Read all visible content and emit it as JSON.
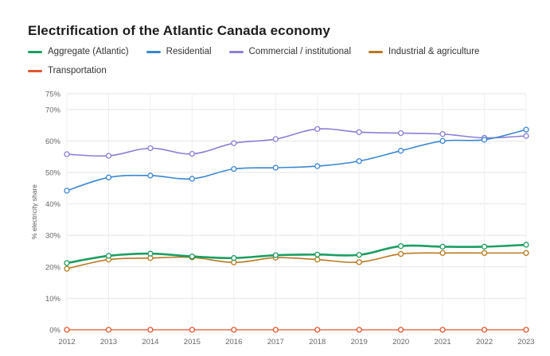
{
  "chart_data": {
    "type": "line",
    "title": "Electrification of the Atlantic Canada economy",
    "ylabel": "% electricity share",
    "xlabel": "",
    "x": [
      "2012",
      "2013",
      "2014",
      "2015",
      "2016",
      "2017",
      "2018",
      "2019",
      "2020",
      "2021",
      "2022",
      "2023"
    ],
    "ylim": [
      0,
      75
    ],
    "yticks": [
      "0%",
      "10%",
      "20%",
      "30%",
      "40%",
      "50%",
      "60%",
      "70%",
      "75%"
    ],
    "grid": true,
    "legend_position": "top-left",
    "series": [
      {
        "name": "Aggregate (Atlantic)",
        "color": "#1a9e62",
        "width": 2.6,
        "values": [
          21.2,
          23.5,
          24.2,
          23.3,
          22.8,
          23.7,
          23.9,
          23.8,
          26.6,
          26.4,
          26.4,
          27.0
        ]
      },
      {
        "name": "Residential",
        "color": "#3a86d1",
        "width": 1.6,
        "values": [
          44.2,
          48.4,
          49.0,
          48.0,
          51.1,
          51.5,
          52.0,
          53.6,
          56.9,
          60.0,
          60.4,
          63.6
        ]
      },
      {
        "name": "Commercial / institutional",
        "color": "#8a7fd6",
        "width": 1.6,
        "values": [
          55.8,
          55.3,
          57.7,
          55.9,
          59.3,
          60.6,
          63.8,
          62.8,
          62.5,
          62.2,
          61.0,
          61.6
        ]
      },
      {
        "name": "Industrial & agriculture",
        "color": "#b7791f",
        "width": 1.6,
        "values": [
          19.4,
          22.3,
          22.8,
          23.0,
          21.4,
          22.9,
          22.3,
          21.5,
          24.1,
          24.4,
          24.4,
          24.4
        ]
      },
      {
        "name": "Transportation",
        "color": "#e2562f",
        "width": 1.2,
        "values": [
          0,
          0,
          0,
          0,
          0,
          0,
          0,
          0,
          0,
          0,
          0,
          0
        ]
      }
    ]
  }
}
